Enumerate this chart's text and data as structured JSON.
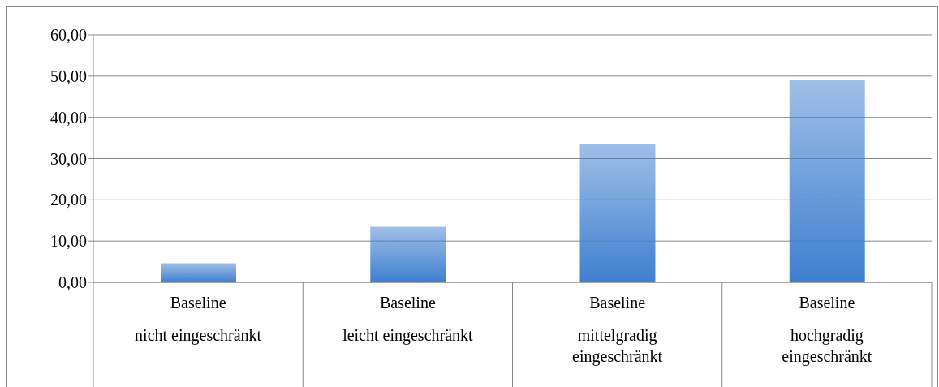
{
  "chart_data": {
    "type": "bar",
    "categories": [
      "Baseline\nnicht eingeschränkt",
      "Baseline\nleicht eingeschränkt",
      "Baseline\nmittelgradig eingeschränkt",
      "Baseline\nhochgradig eingeschränkt"
    ],
    "series": [
      {
        "color": "#3f7fd0",
        "values": [
          4.6,
          13.5,
          33.5,
          49.1
        ]
      }
    ],
    "ylim": [
      0,
      60
    ],
    "yticks": [
      {
        "value": 0,
        "label": "0,00"
      },
      {
        "value": 10,
        "label": "10,00"
      },
      {
        "value": 20,
        "label": "20,00"
      },
      {
        "value": 30,
        "label": "30,00"
      },
      {
        "value": 40,
        "label": "40,00"
      },
      {
        "value": 50,
        "label": "50,00"
      },
      {
        "value": 60,
        "label": "60,00"
      }
    ],
    "grid": "y",
    "legend": false
  }
}
